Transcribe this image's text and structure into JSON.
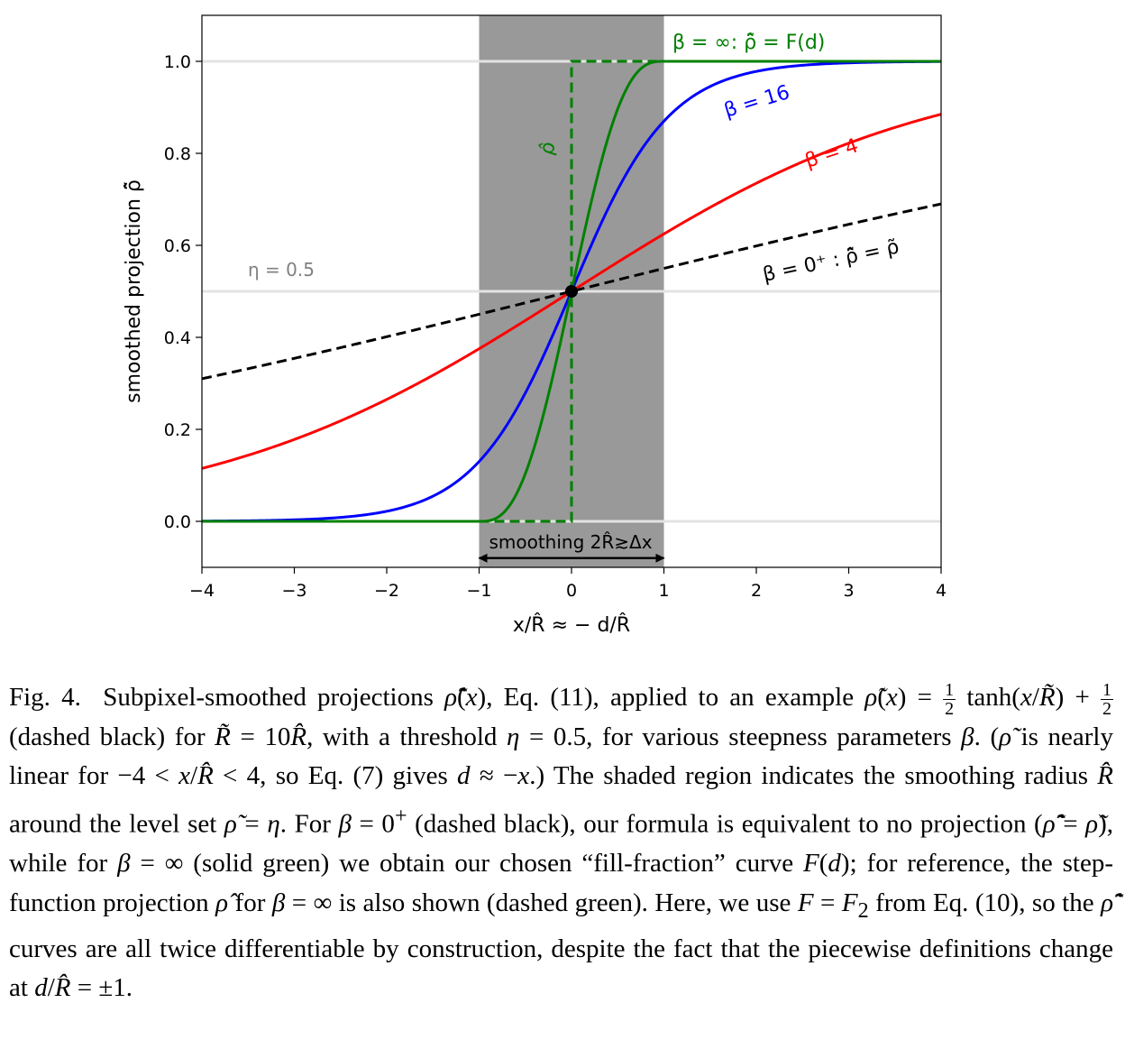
{
  "chart_data": {
    "type": "line",
    "xlabel": "x/R̂ ≈ − d/R̂",
    "ylabel": "smoothed projection ρ̂̃",
    "xlim": [
      -4,
      4
    ],
    "ylim": [
      -0.1,
      1.1
    ],
    "x_ticks": [
      "−4",
      "−3",
      "−2",
      "−1",
      "0",
      "1",
      "2",
      "3",
      "4"
    ],
    "y_ticks": [
      "0.0",
      "0.2",
      "0.4",
      "0.6",
      "0.8",
      "1.0"
    ],
    "grid": "horizontal lines at 0, 0.5, 1",
    "shaded_region": {
      "x_from": -1,
      "x_to": 1,
      "color": "#999999"
    },
    "smoothing_arrow": {
      "from": -1,
      "to": 1,
      "y": -0.08
    },
    "point": {
      "x": 0,
      "y": 0.5
    },
    "series": [
      {
        "label": "β = 0⁺ : ρ̂̃ = ρ̃",
        "color": "#000000",
        "style": "dashed",
        "function": "0.5 + 0.5*tanh(x/10)"
      },
      {
        "label": "β = 4",
        "color": "#ff0000",
        "style": "solid",
        "function": "beta-projection, beta 4"
      },
      {
        "label": "β = 16",
        "color": "#0000ff",
        "style": "solid",
        "function": "beta-projection, beta 16"
      },
      {
        "label": "β = ∞: ρ̂̃ = F(d)",
        "color": "#008000",
        "style": "solid",
        "function": "F2 fill fraction"
      },
      {
        "label": "ρ̂",
        "color": "#008000",
        "style": "dashed",
        "function": "step at x = 0"
      }
    ],
    "annotations": {
      "eta": "η = 0.5",
      "smoothing": "smoothing 2R̂≳Δx",
      "beta_inf": "β = ∞: ρ̂̃ = F(d)",
      "beta16": "β = 16",
      "beta4": "β = 4",
      "beta0": "β = 0⁺ : ρ̂̃ = ρ̃",
      "rho_hat": "ρ̂"
    }
  },
  "caption": {
    "label": "Fig. 4.",
    "text_1": "Subpixel-smoothed projections ",
    "text_2": ", Eq. (11), applied to an example ",
    "text_3": "(dashed black) for ",
    "text_4": ", with a threshold ",
    "text_5": ", for various steepness parameters ",
    "text_6": ". (",
    "text_7": " is nearly linear for ",
    "text_8": ", so Eq. (7) gives ",
    "text_9": ".) The shaded region indicates the smoothing radius ",
    "text_10": " around the level set ",
    "text_11": ". For ",
    "text_12": " (dashed black), our formula is equivalent to no projection (",
    "text_13": "), while for ",
    "text_14": " (solid green) we obtain our chosen “fill-fraction” curve ",
    "text_15": "; for reference, the step-function projection ",
    "text_16": " for ",
    "text_17": " is also shown (dashed green). Here, we use ",
    "text_18": " from Eq. (10), so the ",
    "text_19": " curves are all twice differentiable by construction, despite the fact that the piecewise definitions change at ",
    "text_20": "."
  }
}
